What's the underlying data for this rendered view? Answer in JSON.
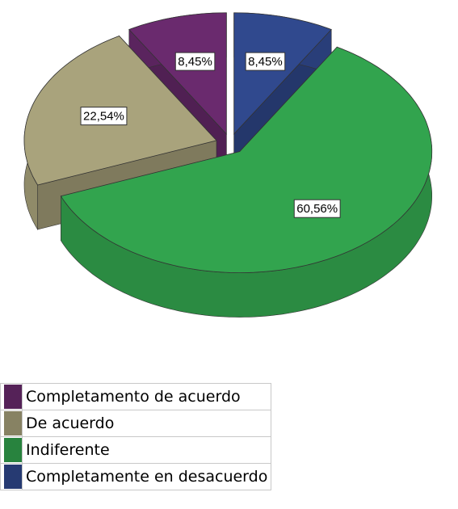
{
  "chart_data": {
    "type": "pie",
    "categories": [
      "Completamento de acuerdo",
      "De acuerdo",
      "Indiferente",
      "Completamente en desacuerdo"
    ],
    "values": [
      8.45,
      22.54,
      60.56,
      8.45
    ],
    "value_labels": [
      "8,45%",
      "22,54%",
      "60,56%",
      "8,45%"
    ],
    "colors": [
      "#6a2a6e",
      "#a9a37c",
      "#32a44e",
      "#30498e"
    ]
  }
}
